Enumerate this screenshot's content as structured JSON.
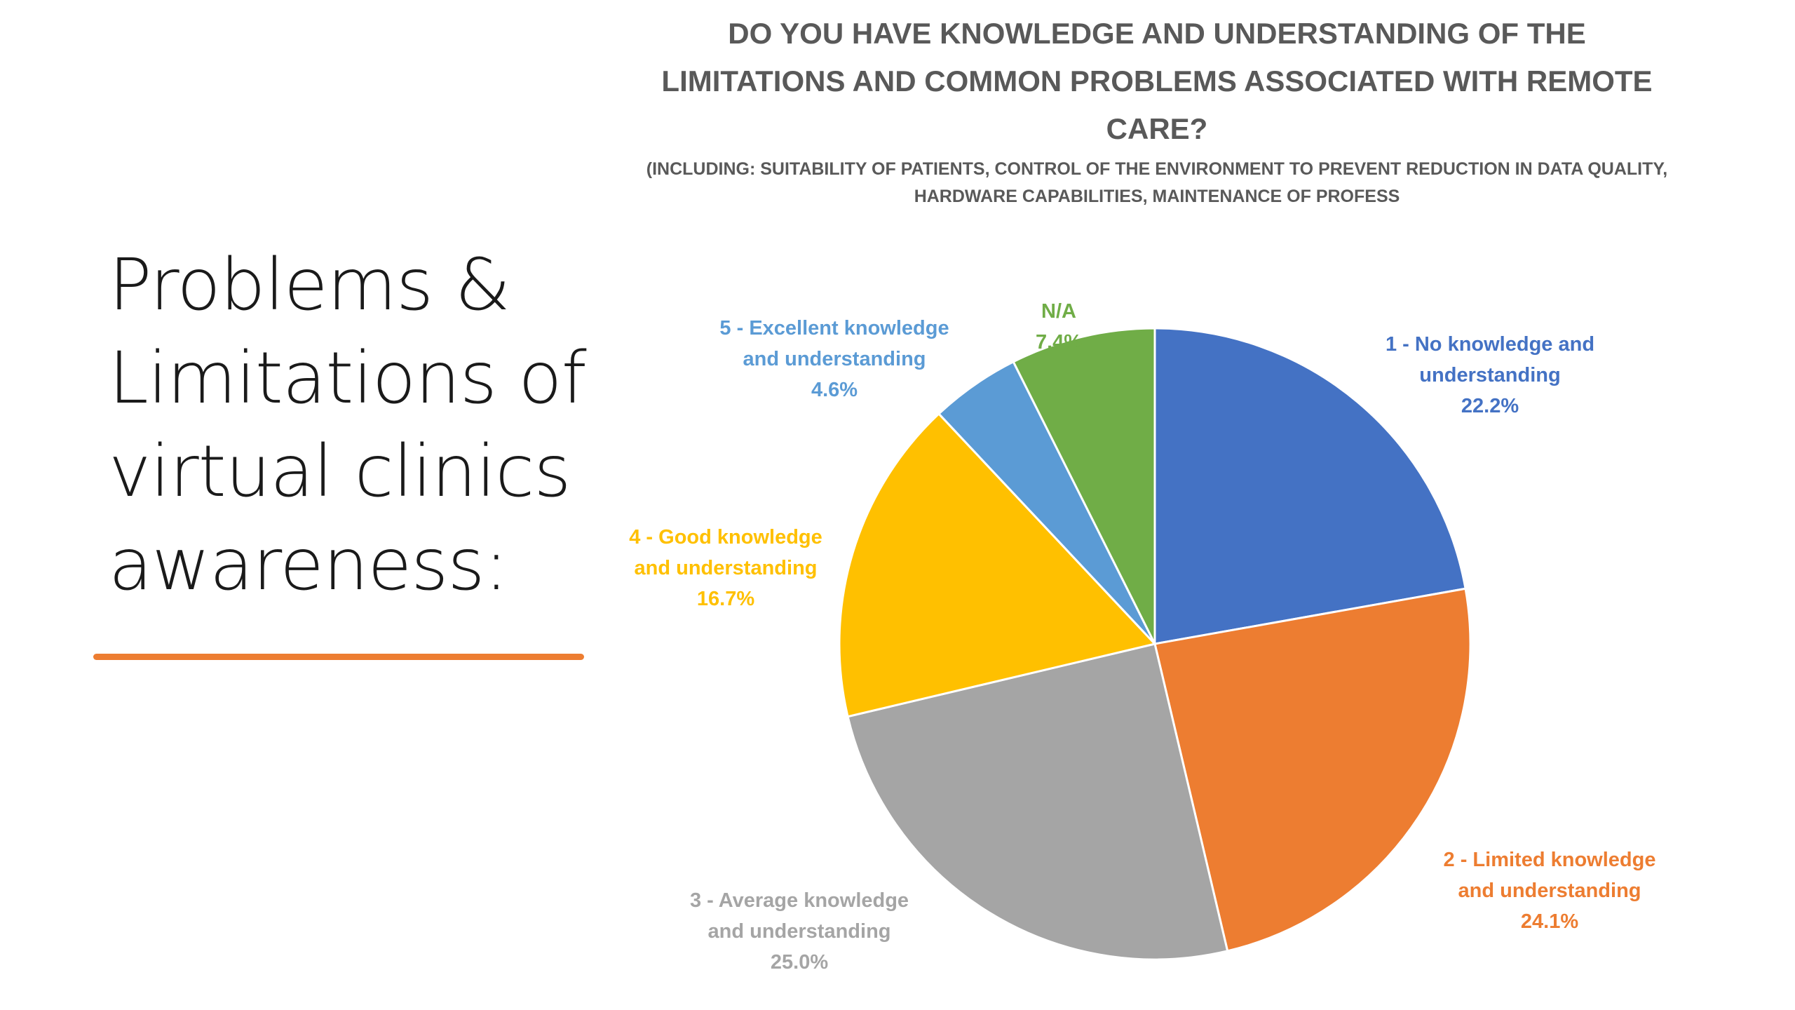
{
  "slide": {
    "title": "Problems & Limitations of virtual clinics awareness:",
    "accent_color": "#ED7D31"
  },
  "chart_data": {
    "type": "pie",
    "title": "DO YOU HAVE KNOWLEDGE AND UNDERSTANDING OF THE LIMITATIONS AND COMMON PROBLEMS ASSOCIATED WITH REMOTE CARE?",
    "subtitle": "(INCLUDING: SUITABILITY OF PATIENTS, CONTROL OF THE ENVIRONMENT TO PREVENT REDUCTION IN DATA QUALITY, HARDWARE CAPABILITIES, MAINTENANCE OF PROFESS",
    "start_angle_deg": 0,
    "direction": "clockwise",
    "slices": [
      {
        "label": "1 - No knowledge and understanding",
        "value": 22.2,
        "percent_label": "22.2%",
        "color": "#4472C4"
      },
      {
        "label": "2 - Limited knowledge and understanding",
        "value": 24.1,
        "percent_label": "24.1%",
        "color": "#ED7D31"
      },
      {
        "label": "3 - Average knowledge and understanding",
        "value": 25.0,
        "percent_label": "25.0%",
        "color": "#A5A5A5"
      },
      {
        "label": "4 - Good knowledge and understanding",
        "value": 16.7,
        "percent_label": "16.7%",
        "color": "#FFC000"
      },
      {
        "label": "5 - Excellent knowledge and understanding",
        "value": 4.6,
        "percent_label": "4.6%",
        "color": "#5B9BD5"
      },
      {
        "label": "N/A",
        "value": 7.4,
        "percent_label": "7.4%",
        "color": "#70AD47"
      }
    ]
  }
}
